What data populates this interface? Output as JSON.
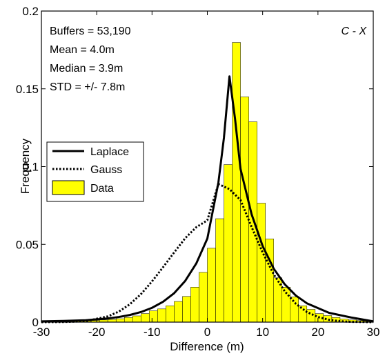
{
  "chart_data": {
    "type": "bar",
    "title": "",
    "xlabel": "Difference (m)",
    "ylabel": "Frequency",
    "xlim": [
      -30,
      30
    ],
    "ylim": [
      0,
      0.2
    ],
    "xticks": [
      -30,
      -20,
      -10,
      0,
      10,
      20,
      30
    ],
    "xtick_labels": [
      "-30",
      "-20",
      "-10",
      "0",
      "10",
      "20",
      "30"
    ],
    "yticks": [
      0,
      0.05,
      0.1,
      0.15,
      0.2
    ],
    "ytick_labels": [
      "0",
      "0.05",
      "0.1",
      "0.15",
      "0.2"
    ],
    "grid": false,
    "legend_position": "middle-left",
    "annotations": {
      "stats": [
        "Buffers = 53,190",
        "Mean = 4.0m",
        "Median = 3.9m",
        "STD = +/- 7.8m"
      ],
      "corner_label": "C - X"
    },
    "bar_color": "#ffff00",
    "bin_width": 1.5,
    "bins": [
      {
        "x": -29.25,
        "value": 0.0005
      },
      {
        "x": -27.75,
        "value": 0.0005
      },
      {
        "x": -26.25,
        "value": 0.0005
      },
      {
        "x": -24.75,
        "value": 0.0008
      },
      {
        "x": -23.25,
        "value": 0.0007
      },
      {
        "x": -21.75,
        "value": 0.0009
      },
      {
        "x": -20.25,
        "value": 0.0011
      },
      {
        "x": -18.75,
        "value": 0.0014
      },
      {
        "x": -17.25,
        "value": 0.0017
      },
      {
        "x": -15.75,
        "value": 0.0022
      },
      {
        "x": -14.25,
        "value": 0.003
      },
      {
        "x": -12.75,
        "value": 0.004
      },
      {
        "x": -11.25,
        "value": 0.0055
      },
      {
        "x": -9.75,
        "value": 0.0073
      },
      {
        "x": -8.25,
        "value": 0.0085
      },
      {
        "x": -6.75,
        "value": 0.0105
      },
      {
        "x": -5.25,
        "value": 0.0133
      },
      {
        "x": -3.75,
        "value": 0.0165
      },
      {
        "x": -2.25,
        "value": 0.0225
      },
      {
        "x": -0.75,
        "value": 0.032
      },
      {
        "x": 0.75,
        "value": 0.0475
      },
      {
        "x": 2.25,
        "value": 0.0665
      },
      {
        "x": 3.75,
        "value": 0.1013
      },
      {
        "x": 5.25,
        "value": 0.1798
      },
      {
        "x": 6.75,
        "value": 0.1448
      },
      {
        "x": 8.25,
        "value": 0.1288
      },
      {
        "x": 9.75,
        "value": 0.0765
      },
      {
        "x": 11.25,
        "value": 0.0535
      },
      {
        "x": 12.75,
        "value": 0.0285
      },
      {
        "x": 14.25,
        "value": 0.0225
      },
      {
        "x": 15.75,
        "value": 0.0162
      },
      {
        "x": 17.25,
        "value": 0.0105
      },
      {
        "x": 18.75,
        "value": 0.0082
      },
      {
        "x": 20.25,
        "value": 0.0055
      },
      {
        "x": 21.75,
        "value": 0.0042
      },
      {
        "x": 23.25,
        "value": 0.003
      },
      {
        "x": 24.75,
        "value": 0.002
      },
      {
        "x": 26.25,
        "value": 0.0014
      },
      {
        "x": 27.75,
        "value": 0.001
      },
      {
        "x": 29.25,
        "value": 0.0007
      }
    ],
    "series": [
      {
        "name": "Laplace",
        "style": "solid",
        "x": [
          -30,
          -26,
          -22,
          -18,
          -16,
          -14,
          -12,
          -10,
          -8,
          -6,
          -4,
          -2,
          0,
          2,
          3,
          4,
          5,
          6,
          8,
          10,
          12,
          14,
          16,
          18,
          22,
          26,
          30
        ],
        "y": [
          0.0005,
          0.0008,
          0.0012,
          0.0024,
          0.0033,
          0.0046,
          0.0065,
          0.0092,
          0.0131,
          0.0186,
          0.0265,
          0.0377,
          0.0537,
          0.0897,
          0.1185,
          0.158,
          0.131,
          0.0985,
          0.0694,
          0.0489,
          0.0344,
          0.0243,
          0.0171,
          0.0121,
          0.006,
          0.003,
          0.0005
        ]
      },
      {
        "name": "Gauss",
        "style": "dotted",
        "x": [
          -30,
          -26,
          -22,
          -18,
          -16,
          -14,
          -12,
          -10,
          -8,
          -6,
          -4,
          -2,
          0,
          2,
          4,
          6,
          8,
          10,
          12,
          14,
          16,
          18,
          20,
          22,
          24,
          26,
          28,
          30
        ],
        "y": [
          1e-05,
          0.0001,
          0.0006,
          0.0037,
          0.0068,
          0.0115,
          0.018,
          0.0262,
          0.0353,
          0.0448,
          0.054,
          0.061,
          0.0655,
          0.0888,
          0.0855,
          0.0785,
          0.0612,
          0.0448,
          0.0308,
          0.0198,
          0.0118,
          0.0065,
          0.0033,
          0.0015,
          0.0006,
          0.0002,
          0.0001,
          1e-05
        ]
      }
    ],
    "legend": [
      {
        "label": "Laplace",
        "kind": "solid-line"
      },
      {
        "label": "Gauss",
        "kind": "dotted-line"
      },
      {
        "label": "Data",
        "kind": "yellow-patch"
      }
    ]
  }
}
